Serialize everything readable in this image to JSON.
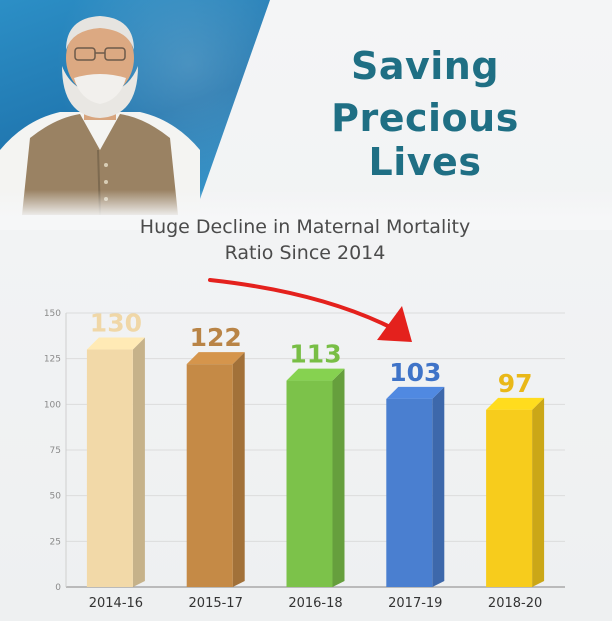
{
  "header": {
    "headline_line1": "Saving",
    "headline_line2": "Precious Lives"
  },
  "chart_data": {
    "type": "bar",
    "title_line1": "Huge Decline in Maternal Mortality",
    "title_line2": "Ratio Since 2014",
    "categories": [
      "2014-16",
      "2015-17",
      "2016-18",
      "2017-19",
      "2018-20"
    ],
    "values": [
      130,
      122,
      113,
      103,
      97
    ],
    "ylim": [
      0,
      150
    ],
    "yticks": [
      0,
      25,
      50,
      75,
      100,
      125,
      150
    ],
    "grid": true,
    "colors": [
      "#f2d9a8",
      "#c58a46",
      "#7cc24a",
      "#4a7fd0",
      "#f7cc1c"
    ],
    "value_label_colors": [
      "#f0d7a7",
      "#b98446",
      "#78be45",
      "#3f74c8",
      "#e9b818"
    ],
    "annotation": "red-arrow-pointing-down-right"
  }
}
